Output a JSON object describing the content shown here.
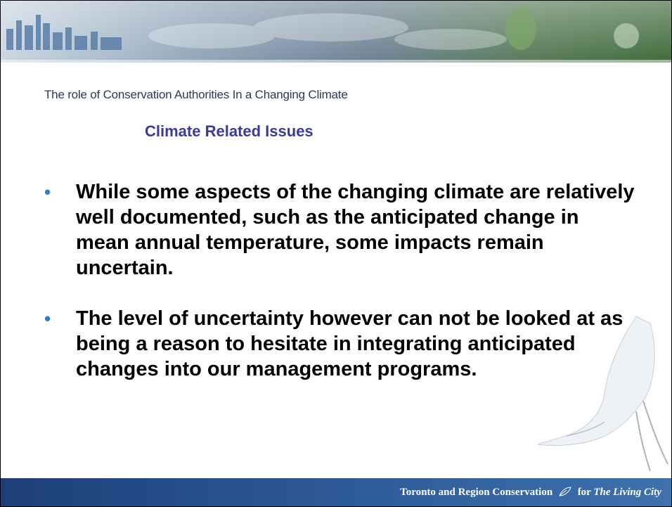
{
  "header": {
    "subtitle": "The role of Conservation Authorities In a Changing Climate",
    "title": "Climate Related Issues"
  },
  "bullets": [
    "While some aspects of the changing climate are relatively well documented, such as the anticipated change in mean annual temperature, some impacts remain uncertain.",
    "The level of uncertainty however can not be looked at as being a reason to hesitate in integrating anticipated changes into our management programs."
  ],
  "footer": {
    "organization": "Toronto and Region Conservation",
    "tagline_lead": "for",
    "tagline": "The Living City"
  }
}
